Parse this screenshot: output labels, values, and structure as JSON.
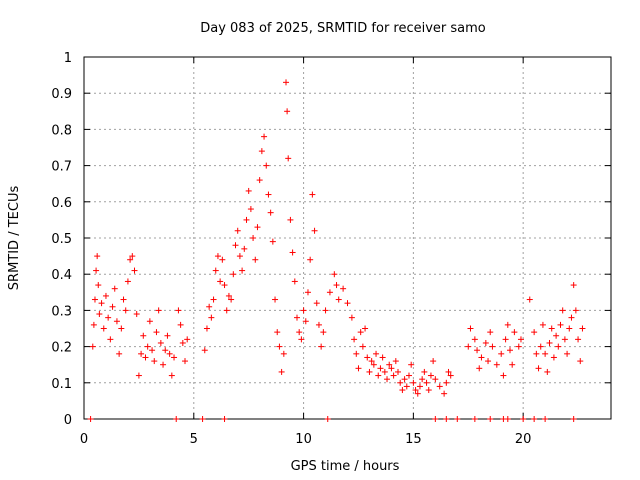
{
  "chart_data": {
    "type": "scatter",
    "title": "Day 083 of 2025, SRMTID for receiver samo",
    "xlabel": "GPS time / hours",
    "ylabel": "SRMTID / TECUs",
    "xlim": [
      0,
      24
    ],
    "ylim": [
      0,
      1
    ],
    "x_ticks": [
      0,
      5,
      10,
      15,
      20
    ],
    "x_tick_labels": [
      "0",
      "5",
      "10",
      "15",
      "20"
    ],
    "y_ticks": [
      0,
      0.1,
      0.2,
      0.3,
      0.4,
      0.5,
      0.6,
      0.7,
      0.8,
      0.9,
      1
    ],
    "y_tick_labels": [
      "0",
      "0.1",
      "0.2",
      "0.3",
      "0.4",
      "0.5",
      "0.6",
      "0.7",
      "0.8",
      "0.9",
      "1"
    ],
    "grid": true,
    "marker": "+",
    "color": "#ff0000",
    "series": [
      {
        "name": "SRMTID",
        "points": [
          [
            0.4,
            0.2
          ],
          [
            0.45,
            0.26
          ],
          [
            0.5,
            0.33
          ],
          [
            0.55,
            0.41
          ],
          [
            0.6,
            0.45
          ],
          [
            0.65,
            0.37
          ],
          [
            0.7,
            0.29
          ],
          [
            0.8,
            0.32
          ],
          [
            0.9,
            0.25
          ],
          [
            1.0,
            0.34
          ],
          [
            1.1,
            0.28
          ],
          [
            1.2,
            0.22
          ],
          [
            1.3,
            0.31
          ],
          [
            1.4,
            0.36
          ],
          [
            1.5,
            0.27
          ],
          [
            1.6,
            0.18
          ],
          [
            1.7,
            0.25
          ],
          [
            1.8,
            0.33
          ],
          [
            1.9,
            0.3
          ],
          [
            2.0,
            0.38
          ],
          [
            2.1,
            0.44
          ],
          [
            2.2,
            0.45
          ],
          [
            2.3,
            0.41
          ],
          [
            2.4,
            0.29
          ],
          [
            2.5,
            0.12
          ],
          [
            2.6,
            0.18
          ],
          [
            2.7,
            0.23
          ],
          [
            2.8,
            0.17
          ],
          [
            2.9,
            0.2
          ],
          [
            3.0,
            0.27
          ],
          [
            3.1,
            0.19
          ],
          [
            3.2,
            0.16
          ],
          [
            3.3,
            0.24
          ],
          [
            3.4,
            0.3
          ],
          [
            3.5,
            0.21
          ],
          [
            3.6,
            0.15
          ],
          [
            3.7,
            0.19
          ],
          [
            3.8,
            0.23
          ],
          [
            3.9,
            0.18
          ],
          [
            4.0,
            0.12
          ],
          [
            4.1,
            0.17
          ],
          [
            4.3,
            0.3
          ],
          [
            4.4,
            0.26
          ],
          [
            4.5,
            0.21
          ],
          [
            4.6,
            0.16
          ],
          [
            4.7,
            0.22
          ],
          [
            5.5,
            0.19
          ],
          [
            5.6,
            0.25
          ],
          [
            5.7,
            0.31
          ],
          [
            5.8,
            0.28
          ],
          [
            5.9,
            0.33
          ],
          [
            6.0,
            0.41
          ],
          [
            6.1,
            0.45
          ],
          [
            6.2,
            0.38
          ],
          [
            6.3,
            0.44
          ],
          [
            6.4,
            0.37
          ],
          [
            6.5,
            0.3
          ],
          [
            6.6,
            0.34
          ],
          [
            6.7,
            0.33
          ],
          [
            6.8,
            0.4
          ],
          [
            6.9,
            0.48
          ],
          [
            7.0,
            0.52
          ],
          [
            7.1,
            0.45
          ],
          [
            7.2,
            0.41
          ],
          [
            7.3,
            0.47
          ],
          [
            7.4,
            0.55
          ],
          [
            7.5,
            0.63
          ],
          [
            7.6,
            0.58
          ],
          [
            7.7,
            0.5
          ],
          [
            7.8,
            0.44
          ],
          [
            7.9,
            0.53
          ],
          [
            8.0,
            0.66
          ],
          [
            8.1,
            0.74
          ],
          [
            8.2,
            0.78
          ],
          [
            8.3,
            0.7
          ],
          [
            8.4,
            0.62
          ],
          [
            8.5,
            0.57
          ],
          [
            8.6,
            0.49
          ],
          [
            8.7,
            0.33
          ],
          [
            8.8,
            0.24
          ],
          [
            8.9,
            0.2
          ],
          [
            9.0,
            0.13
          ],
          [
            9.1,
            0.18
          ],
          [
            9.2,
            0.93
          ],
          [
            9.25,
            0.85
          ],
          [
            9.3,
            0.72
          ],
          [
            9.4,
            0.55
          ],
          [
            9.5,
            0.46
          ],
          [
            9.6,
            0.38
          ],
          [
            9.7,
            0.28
          ],
          [
            9.8,
            0.24
          ],
          [
            9.9,
            0.22
          ],
          [
            10.0,
            0.3
          ],
          [
            10.1,
            0.27
          ],
          [
            10.2,
            0.35
          ],
          [
            10.3,
            0.44
          ],
          [
            10.4,
            0.62
          ],
          [
            10.5,
            0.52
          ],
          [
            10.6,
            0.32
          ],
          [
            10.7,
            0.26
          ],
          [
            10.8,
            0.2
          ],
          [
            10.9,
            0.24
          ],
          [
            11.0,
            0.3
          ],
          [
            11.2,
            0.35
          ],
          [
            11.4,
            0.4
          ],
          [
            11.5,
            0.37
          ],
          [
            11.6,
            0.33
          ],
          [
            11.8,
            0.36
          ],
          [
            12.0,
            0.32
          ],
          [
            12.2,
            0.28
          ],
          [
            12.3,
            0.22
          ],
          [
            12.4,
            0.18
          ],
          [
            12.5,
            0.14
          ],
          [
            12.6,
            0.24
          ],
          [
            12.7,
            0.2
          ],
          [
            12.8,
            0.25
          ],
          [
            12.9,
            0.17
          ],
          [
            13.0,
            0.13
          ],
          [
            13.1,
            0.16
          ],
          [
            13.2,
            0.15
          ],
          [
            13.3,
            0.18
          ],
          [
            13.4,
            0.12
          ],
          [
            13.5,
            0.14
          ],
          [
            13.6,
            0.17
          ],
          [
            13.7,
            0.13
          ],
          [
            13.8,
            0.11
          ],
          [
            13.9,
            0.15
          ],
          [
            14.0,
            0.14
          ],
          [
            14.1,
            0.12
          ],
          [
            14.2,
            0.16
          ],
          [
            14.3,
            0.13
          ],
          [
            14.4,
            0.1
          ],
          [
            14.5,
            0.08
          ],
          [
            14.6,
            0.11
          ],
          [
            14.7,
            0.09
          ],
          [
            14.8,
            0.12
          ],
          [
            14.9,
            0.15
          ],
          [
            15.0,
            0.1
          ],
          [
            15.1,
            0.08
          ],
          [
            15.2,
            0.07
          ],
          [
            15.3,
            0.09
          ],
          [
            15.4,
            0.11
          ],
          [
            15.5,
            0.13
          ],
          [
            15.6,
            0.1
          ],
          [
            15.7,
            0.08
          ],
          [
            15.8,
            0.12
          ],
          [
            15.9,
            0.16
          ],
          [
            16.0,
            0.11
          ],
          [
            16.2,
            0.09
          ],
          [
            16.4,
            0.07
          ],
          [
            16.5,
            0.1
          ],
          [
            16.6,
            0.13
          ],
          [
            16.7,
            0.12
          ],
          [
            17.5,
            0.2
          ],
          [
            17.6,
            0.25
          ],
          [
            17.8,
            0.22
          ],
          [
            17.9,
            0.19
          ],
          [
            18.0,
            0.14
          ],
          [
            18.1,
            0.17
          ],
          [
            18.3,
            0.21
          ],
          [
            18.4,
            0.16
          ],
          [
            18.5,
            0.24
          ],
          [
            18.6,
            0.2
          ],
          [
            18.8,
            0.15
          ],
          [
            19.0,
            0.18
          ],
          [
            19.1,
            0.12
          ],
          [
            19.2,
            0.22
          ],
          [
            19.3,
            0.26
          ],
          [
            19.4,
            0.19
          ],
          [
            19.5,
            0.15
          ],
          [
            19.6,
            0.24
          ],
          [
            19.8,
            0.2
          ],
          [
            19.9,
            0.22
          ],
          [
            20.3,
            0.33
          ],
          [
            20.5,
            0.24
          ],
          [
            20.6,
            0.18
          ],
          [
            20.7,
            0.14
          ],
          [
            20.8,
            0.2
          ],
          [
            20.9,
            0.26
          ],
          [
            21.0,
            0.18
          ],
          [
            21.1,
            0.13
          ],
          [
            21.2,
            0.21
          ],
          [
            21.3,
            0.25
          ],
          [
            21.4,
            0.17
          ],
          [
            21.5,
            0.23
          ],
          [
            21.6,
            0.2
          ],
          [
            21.7,
            0.26
          ],
          [
            21.8,
            0.3
          ],
          [
            21.9,
            0.22
          ],
          [
            22.0,
            0.18
          ],
          [
            22.1,
            0.25
          ],
          [
            22.2,
            0.28
          ],
          [
            22.3,
            0.37
          ],
          [
            22.4,
            0.3
          ],
          [
            22.5,
            0.22
          ],
          [
            22.6,
            0.16
          ],
          [
            22.7,
            0.25
          ]
        ]
      }
    ],
    "zero_markers_x": [
      0.3,
      4.2,
      5.4,
      6.4,
      11.1,
      16.0,
      16.5,
      17.0,
      17.8,
      18.5,
      19.1,
      19.3,
      20.0,
      20.5,
      21.0,
      22.3
    ]
  }
}
